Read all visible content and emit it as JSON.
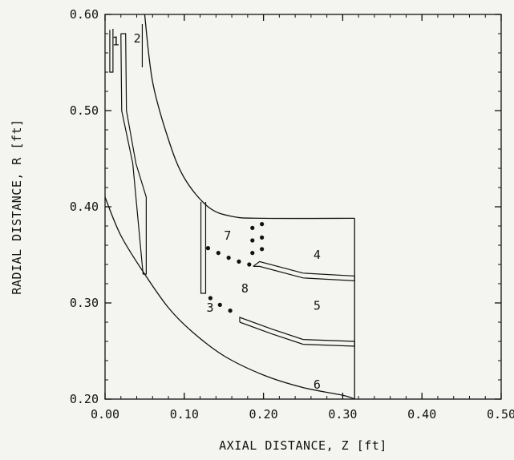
{
  "chart_data": {
    "type": "line",
    "title": "",
    "xlabel": "AXIAL DISTANCE, Z [ft]",
    "ylabel": "RADIAL DISTANCE, R [ft]",
    "xlim": [
      0.0,
      0.5
    ],
    "ylim": [
      0.2,
      0.6
    ],
    "x_ticks": [
      "0.00",
      "0.10",
      "0.20",
      "0.30",
      "0.40",
      "0.50"
    ],
    "y_ticks": [
      "0.20",
      "0.30",
      "0.40",
      "0.50",
      "0.60"
    ],
    "grid": false,
    "series": [
      {
        "values": [
          [
            0.0,
            0.41
          ],
          [
            0.02,
            0.37
          ],
          [
            0.05,
            0.33
          ],
          [
            0.08,
            0.295
          ],
          [
            0.11,
            0.27
          ],
          [
            0.15,
            0.245
          ],
          [
            0.2,
            0.225
          ],
          [
            0.25,
            0.212
          ],
          [
            0.3,
            0.204
          ],
          [
            0.315,
            0.2
          ]
        ]
      },
      {
        "values": [
          [
            0.05,
            0.6
          ],
          [
            0.06,
            0.53
          ],
          [
            0.08,
            0.47
          ],
          [
            0.1,
            0.43
          ],
          [
            0.13,
            0.4
          ],
          [
            0.16,
            0.39
          ],
          [
            0.2,
            0.388
          ],
          [
            0.315,
            0.388
          ]
        ]
      },
      {
        "values": [
          [
            0.315,
            0.388
          ],
          [
            0.315,
            0.2
          ]
        ]
      }
    ],
    "annotations": [
      {
        "text": "1",
        "x": 0.009,
        "y": 0.572
      },
      {
        "text": "2",
        "x": 0.036,
        "y": 0.575
      },
      {
        "text": "3",
        "x": 0.128,
        "y": 0.295
      },
      {
        "text": "4",
        "x": 0.263,
        "y": 0.35
      },
      {
        "text": "5",
        "x": 0.263,
        "y": 0.297
      },
      {
        "text": "6",
        "x": 0.263,
        "y": 0.215
      },
      {
        "text": "7",
        "x": 0.15,
        "y": 0.37
      },
      {
        "text": "8",
        "x": 0.172,
        "y": 0.315
      }
    ]
  }
}
